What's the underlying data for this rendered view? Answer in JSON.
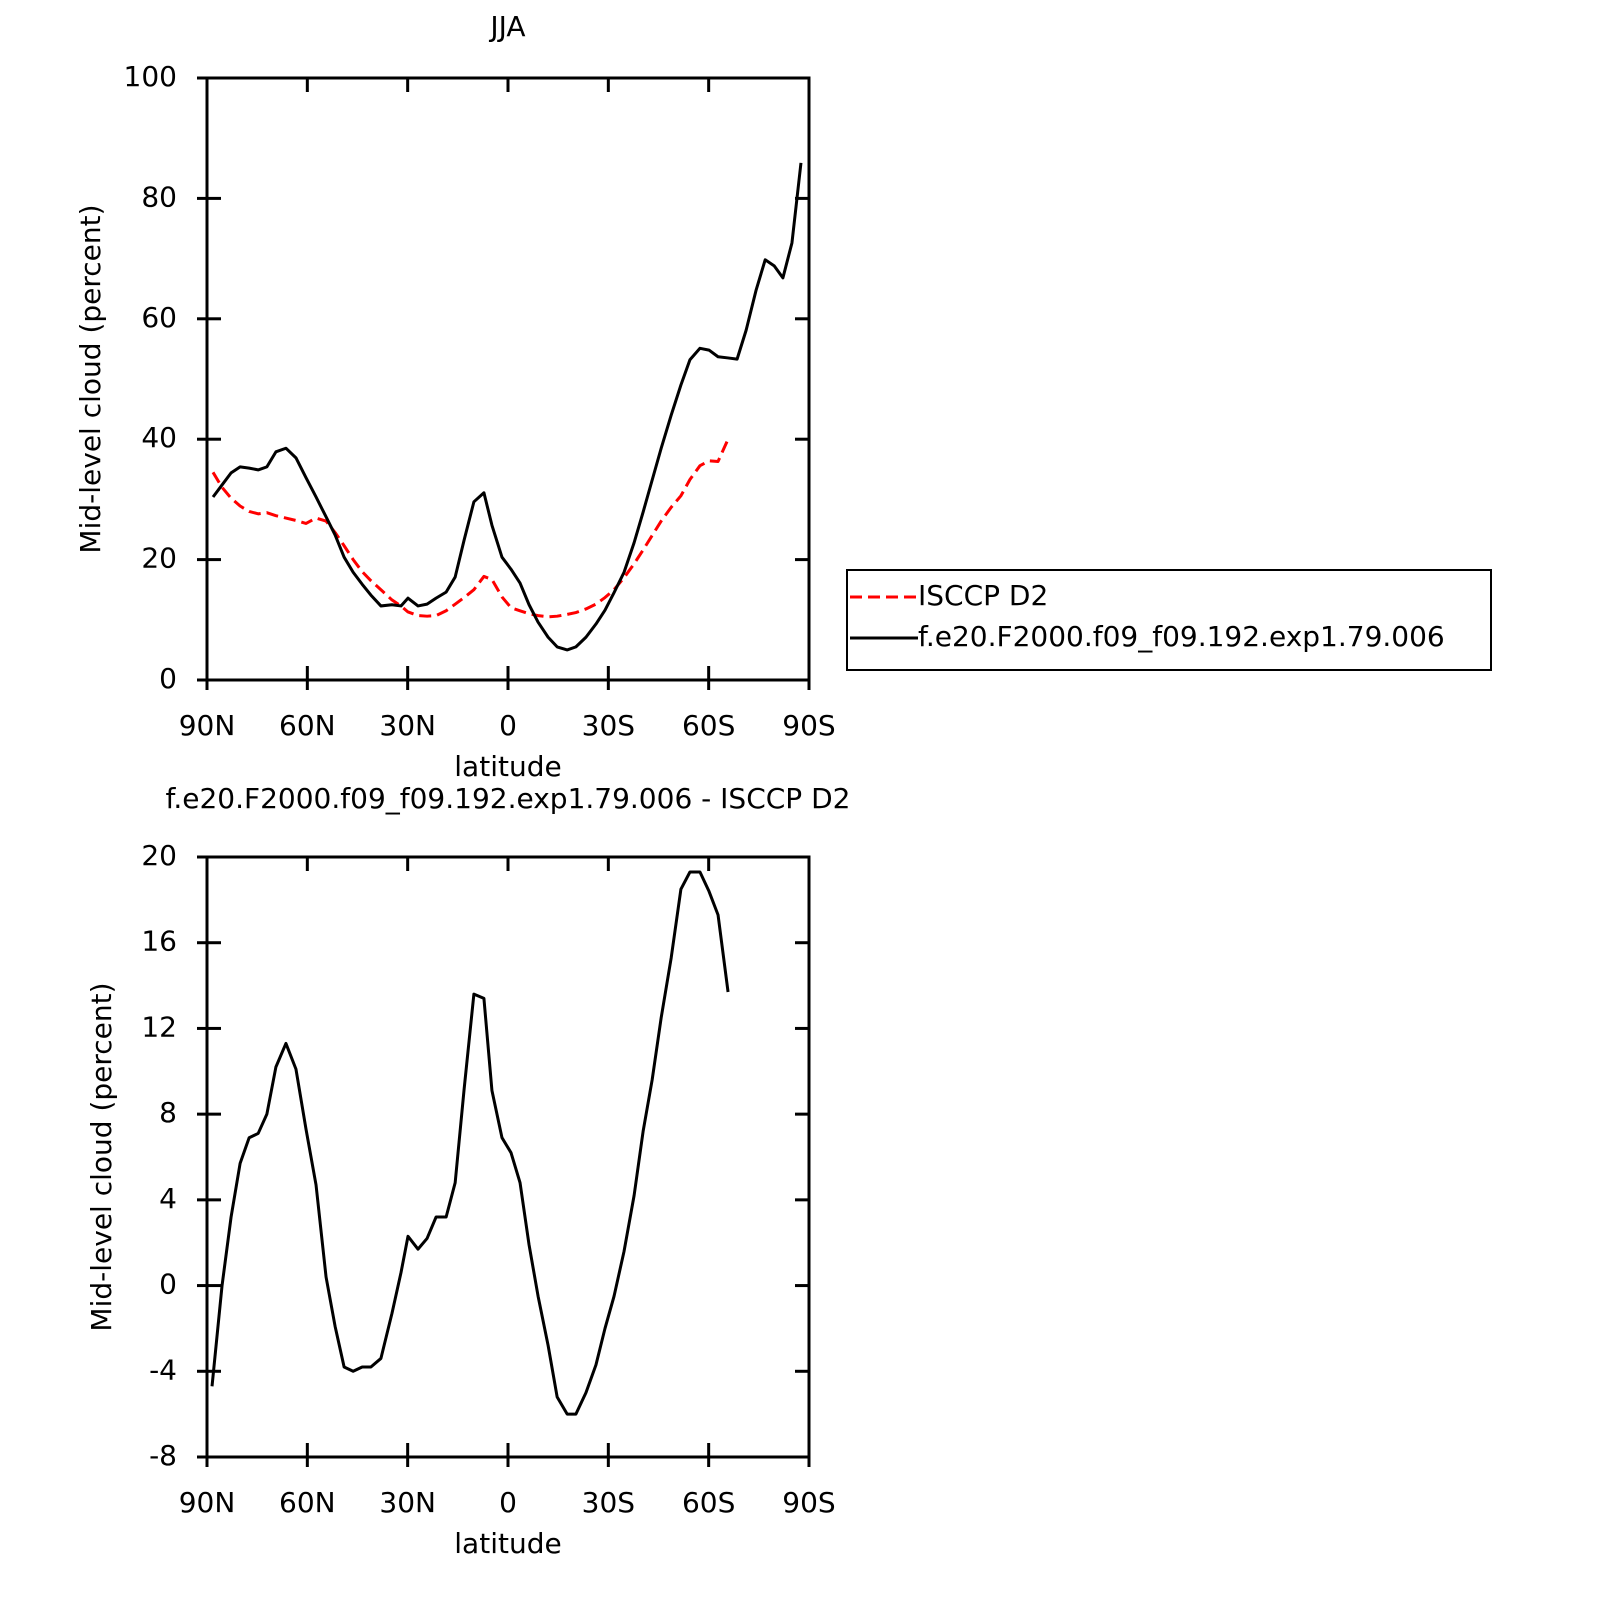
{
  "chart_data": [
    {
      "type": "line",
      "title": "JJA",
      "xlabel": "latitude",
      "ylabel": "Mid-level cloud (percent)",
      "xlim": [
        90,
        -90
      ],
      "xticks": [
        {
          "value": 90,
          "label": "90N"
        },
        {
          "value": 60,
          "label": "60N"
        },
        {
          "value": 30,
          "label": "30N"
        },
        0,
        {
          "value": -30,
          "label": "30S"
        },
        {
          "value": -60,
          "label": "60S"
        },
        {
          "value": -90,
          "label": "90S"
        }
      ],
      "ylim": [
        0,
        100
      ],
      "yticks": [
        0,
        20,
        40,
        60,
        80,
        100
      ],
      "grid": false,
      "legend": "right",
      "x": [
        88.2,
        85.5,
        82.8,
        80.1,
        77.4,
        74.7,
        72.1,
        69.4,
        66.4,
        63.4,
        60.4,
        57.4,
        54.4,
        51.7,
        49.0,
        46.3,
        43.6,
        41.0,
        38.0,
        34.7,
        32.0,
        29.9,
        26.9,
        24.2,
        21.5,
        18.5,
        15.8,
        13.1,
        10.2,
        7.2,
        4.8,
        1.8,
        -0.9,
        -3.6,
        -6.3,
        -9.0,
        -12.0,
        -14.7,
        -17.7,
        -20.3,
        -23.3,
        -26.3,
        -29.0,
        -31.7,
        -34.7,
        -37.7,
        -40.4,
        -43.1,
        -45.8,
        -48.8,
        -51.7,
        -54.4,
        -57.4,
        -60.1,
        -62.8,
        -65.8,
        -68.5,
        -71.2,
        -74.2,
        -76.9,
        -79.6,
        -82.2,
        -84.9,
        -87.6
      ],
      "series": [
        {
          "name": "ISCCP D2",
          "color": "#ff0000",
          "line_style": "dashed",
          "values": [
            34.5,
            32.0,
            30.2,
            28.9,
            28.0,
            27.6,
            27.8,
            27.3,
            26.9,
            26.5,
            26.0,
            26.9,
            26.4,
            24.5,
            22.3,
            20.0,
            18.0,
            16.5,
            15.0,
            13.3,
            12.3,
            11.3,
            10.7,
            10.6,
            10.7,
            11.5,
            12.6,
            13.7,
            15.0,
            17.2,
            16.7,
            13.8,
            12.0,
            11.5,
            11.0,
            10.7,
            10.5,
            10.6,
            10.9,
            11.2,
            11.8,
            12.6,
            13.7,
            15.0,
            17.0,
            19.3,
            21.6,
            24.0,
            26.4,
            28.7,
            30.6,
            33.3,
            35.6,
            36.4,
            36.3,
            40.0,
            null,
            null,
            null,
            null,
            null,
            null,
            null,
            null
          ]
        },
        {
          "name": "f.e20.F2000.f09_f09.192.exp1.79.006",
          "color": "#000000",
          "line_style": "solid",
          "values": [
            30.4,
            32.4,
            34.4,
            35.4,
            35.2,
            34.9,
            35.4,
            37.9,
            38.5,
            36.9,
            33.6,
            30.4,
            27.1,
            24.1,
            20.4,
            17.9,
            15.9,
            14.1,
            12.3,
            12.5,
            12.3,
            13.6,
            12.3,
            12.6,
            13.6,
            14.6,
            17.1,
            23.3,
            29.6,
            31.1,
            25.7,
            20.4,
            18.4,
            16.1,
            12.5,
            9.6,
            7.1,
            5.5,
            5.0,
            5.5,
            7.1,
            9.3,
            11.6,
            14.5,
            17.9,
            22.8,
            27.9,
            33.2,
            38.5,
            44.0,
            49.0,
            53.2,
            55.1,
            54.8,
            53.7,
            53.5,
            53.3,
            58.1,
            64.8,
            69.8,
            68.8,
            66.8,
            72.6,
            85.9
          ]
        }
      ]
    },
    {
      "type": "line",
      "title": "f.e20.F2000.f09_f09.192.exp1.79.006 - ISCCP D2",
      "xlabel": "latitude",
      "ylabel": "Mid-level cloud (percent)",
      "xlim": [
        90,
        -90
      ],
      "xticks": [
        {
          "value": 90,
          "label": "90N"
        },
        {
          "value": 60,
          "label": "60N"
        },
        {
          "value": 30,
          "label": "30N"
        },
        0,
        {
          "value": -30,
          "label": "30S"
        },
        {
          "value": -60,
          "label": "60S"
        },
        {
          "value": -90,
          "label": "90S"
        }
      ],
      "ylim": [
        -8,
        20
      ],
      "yticks": [
        -8,
        -4,
        0,
        4,
        8,
        12,
        16,
        20
      ],
      "grid": false,
      "x": [
        88.5,
        85.5,
        82.8,
        80.1,
        77.4,
        74.7,
        72.1,
        69.4,
        66.4,
        63.4,
        60.4,
        57.4,
        54.4,
        51.7,
        49.0,
        46.3,
        43.6,
        41.0,
        38.0,
        34.7,
        32.0,
        29.9,
        26.9,
        24.2,
        21.5,
        18.5,
        15.8,
        13.1,
        10.2,
        7.2,
        4.8,
        1.8,
        -0.9,
        -3.6,
        -6.3,
        -9.0,
        -12.0,
        -14.7,
        -17.7,
        -20.3,
        -23.3,
        -26.3,
        -29.0,
        -31.7,
        -34.7,
        -37.7,
        -40.4,
        -43.1,
        -45.8,
        -48.8,
        -51.7,
        -54.4,
        -57.4,
        -60.1,
        -62.8,
        -65.8
      ],
      "series": [
        {
          "color": "#000000",
          "line_style": "solid",
          "values": [
            -4.7,
            0.0,
            3.2,
            5.7,
            6.9,
            7.1,
            8.0,
            10.2,
            11.3,
            10.1,
            7.3,
            4.7,
            0.4,
            -1.9,
            -3.8,
            -4.0,
            -3.8,
            -3.8,
            -3.4,
            -1.3,
            0.6,
            2.3,
            1.7,
            2.2,
            3.2,
            3.2,
            4.8,
            9.2,
            13.6,
            13.4,
            9.1,
            6.9,
            6.2,
            4.8,
            1.9,
            -0.5,
            -2.8,
            -5.2,
            -6.0,
            -6.0,
            -5.0,
            -3.7,
            -2.0,
            -0.5,
            1.6,
            4.2,
            7.2,
            9.6,
            12.5,
            15.3,
            18.5,
            19.3,
            19.3,
            18.4,
            17.3,
            13.7
          ]
        }
      ]
    }
  ]
}
